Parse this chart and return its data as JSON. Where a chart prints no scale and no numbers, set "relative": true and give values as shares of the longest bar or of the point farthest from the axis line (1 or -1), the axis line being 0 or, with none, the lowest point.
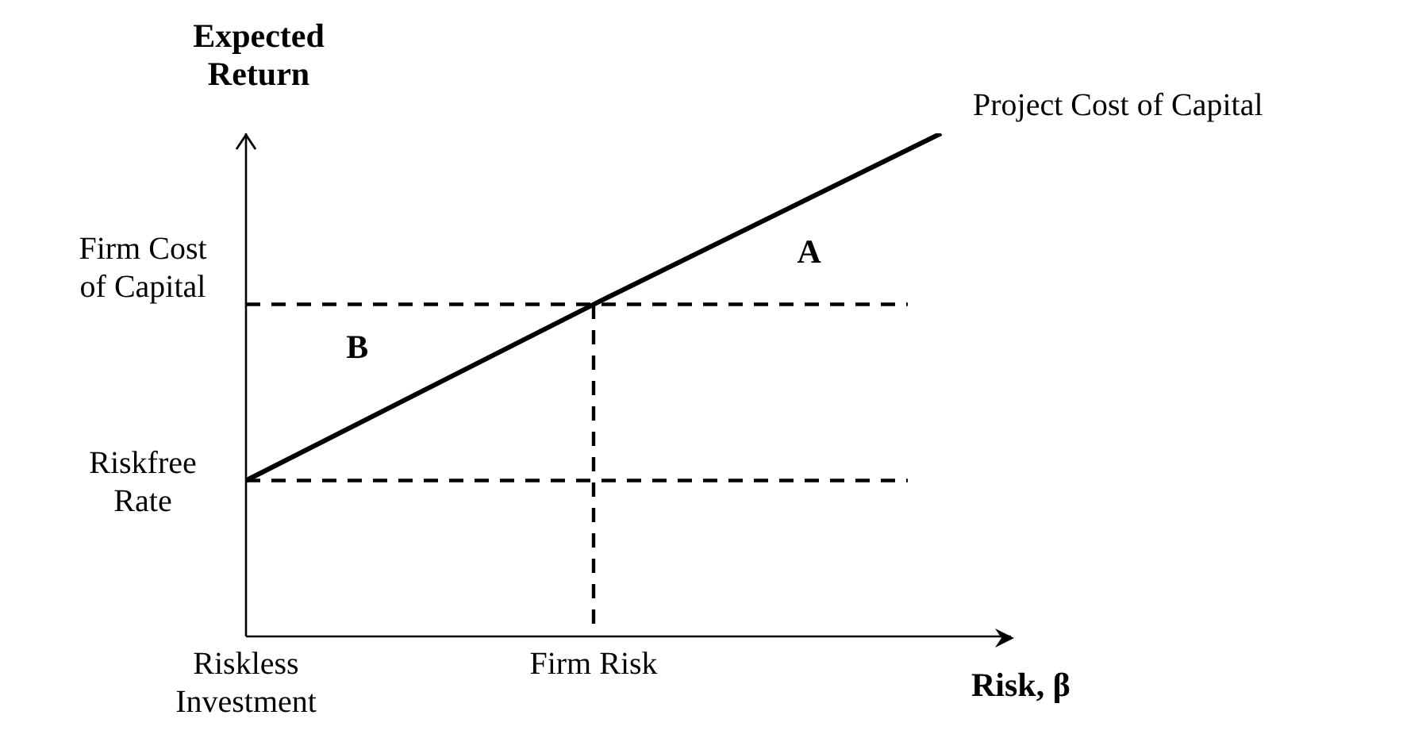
{
  "chart_data": {
    "type": "line",
    "relative": true,
    "xlabel": "Risk, β",
    "ylabel": "Expected Return",
    "categories": [
      "Riskless Investment",
      "Firm Risk",
      null
    ],
    "tick_labels": "x",
    "series": [
      {
        "name": "Project Cost of Capital",
        "color": "#000000",
        "values": [
          0.31,
          0.66,
          1
        ]
      }
    ],
    "ref_lines": [
      {
        "axis": "y",
        "value": 0.66,
        "label": "Firm Cost of Capital",
        "color": "#000000",
        "line_style": "dashed"
      },
      {
        "axis": "y",
        "value": 0.31,
        "label": "Riskfree Rate",
        "color": "#000000",
        "line_style": "dashed"
      },
      {
        "axis": "x",
        "value": "Firm Risk",
        "color": "#000000",
        "line_style": "dashed"
      }
    ],
    "annotations": [
      "A",
      "B"
    ]
  }
}
